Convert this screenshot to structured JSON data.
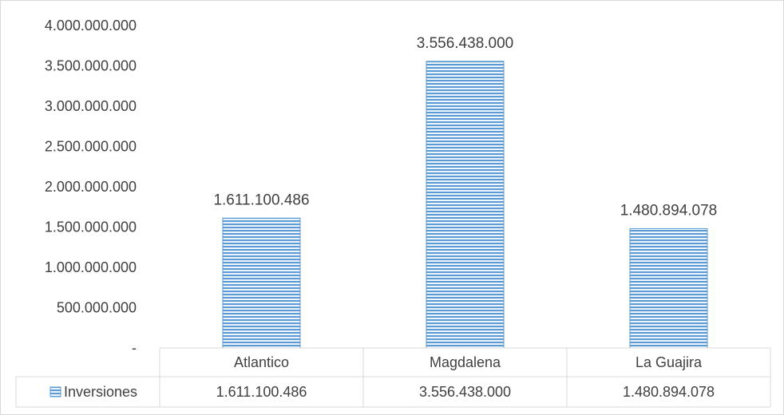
{
  "chart_data": {
    "type": "bar",
    "categories": [
      "Atlantico",
      "Magdalena",
      "La Guajira"
    ],
    "series": [
      {
        "name": "Inversiones",
        "values": [
          1611100486,
          3556438000,
          1480894078
        ],
        "value_labels": [
          "1.611.100.486",
          "3.556.438.000",
          "1.480.894.078"
        ],
        "color": "#5b9bd5"
      }
    ],
    "ylim": [
      0,
      4000000000
    ],
    "yticks": [
      0,
      500000000,
      1000000000,
      1500000000,
      2000000000,
      2500000000,
      3000000000,
      3500000000,
      4000000000
    ],
    "ytick_labels": [
      "-",
      "500.000.000",
      "1.000.000.000",
      "1.500.000.000",
      "2.000.000.000",
      "2.500.000.000",
      "3.000.000.000",
      "3.500.000.000",
      "4.000.000.000"
    ],
    "grid": false,
    "data_table": true,
    "bar_fill": "horizontal-stripes"
  }
}
